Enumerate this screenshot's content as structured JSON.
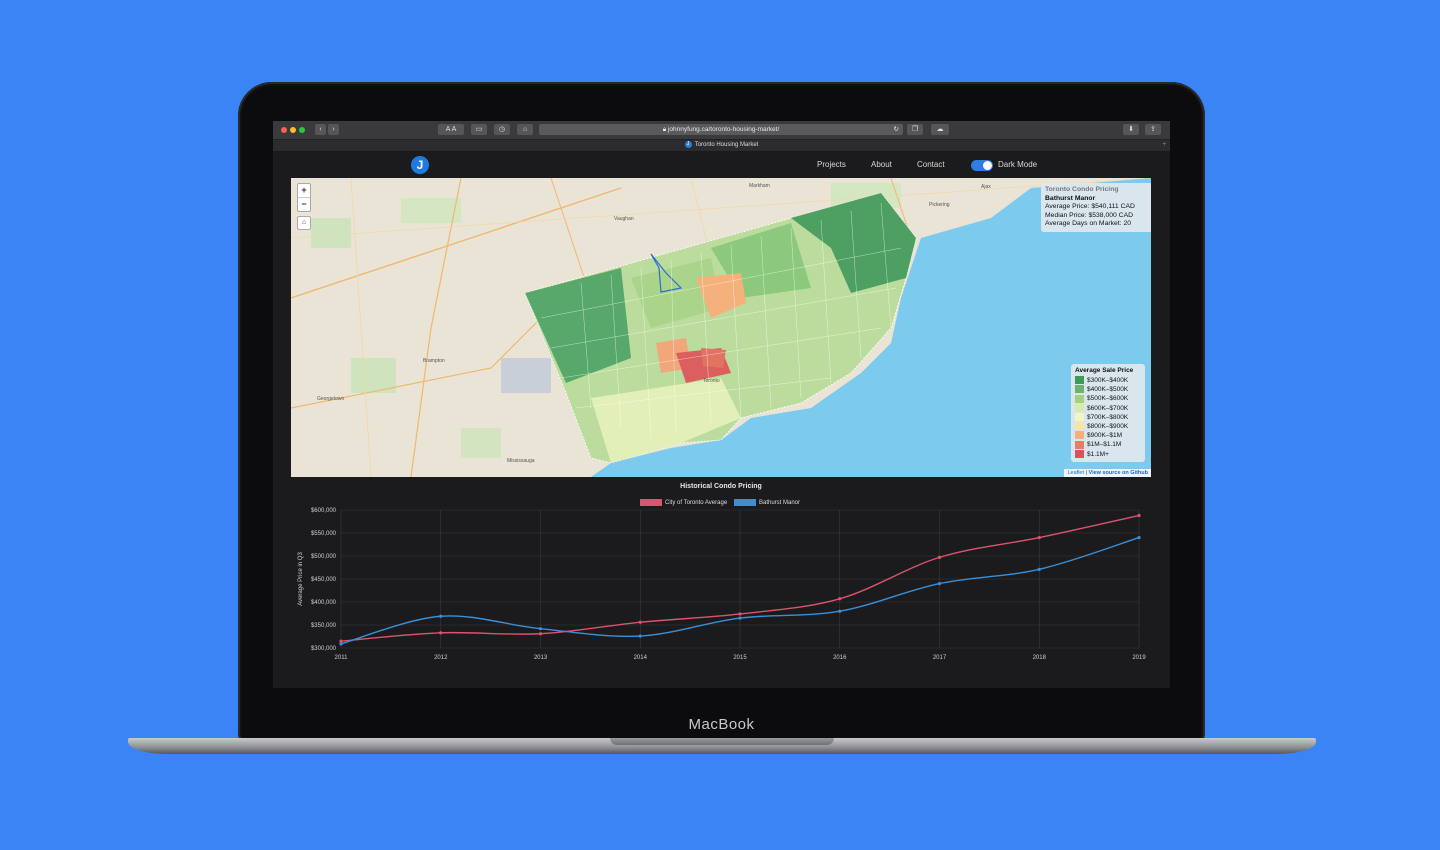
{
  "device": {
    "brand": "MacBook"
  },
  "browser": {
    "url": "johnnyfung.ca/toronto-housing-market/",
    "tab_title": "Toronto Housing Market",
    "tab_icon_letter": "J",
    "reader_font_small": "A",
    "reader_font_large": "A"
  },
  "site_nav": {
    "logo_letter": "J",
    "links": [
      "Projects",
      "About",
      "Contact"
    ],
    "dark_mode_label": "Dark Mode",
    "dark_mode_on": true
  },
  "map": {
    "zoom_in": "+",
    "zoom_out": "−",
    "place_labels": [
      "Vaughan",
      "Markham",
      "Brampton",
      "Mississauga",
      "Ajax",
      "Pickering",
      "Georgetown",
      "Toronto"
    ],
    "info": {
      "title": "Toronto Condo Pricing",
      "neighbourhood": "Bathurst Manor",
      "average_price": "Average Price: $540,111 CAD",
      "median_price": "Median Price: $538,000 CAD",
      "days_on_market": "Average Days on Market: 20"
    },
    "legend": {
      "title": "Average Sale Price",
      "items": [
        {
          "label": "$300K–$400K",
          "color": "#3f9a5a"
        },
        {
          "label": "$400K–$500K",
          "color": "#6db46b"
        },
        {
          "label": "$500K–$600K",
          "color": "#a5d07e"
        },
        {
          "label": "$600K–$700K",
          "color": "#d6ebad"
        },
        {
          "label": "$700K–$800K",
          "color": "#f3f5c4"
        },
        {
          "label": "$800K–$900K",
          "color": "#fbe3a4"
        },
        {
          "label": "$900K–$1M",
          "color": "#f5b07a"
        },
        {
          "label": "$1M–$1.1M",
          "color": "#e87c66"
        },
        {
          "label": "$1.1M+",
          "color": "#d6545a"
        }
      ]
    },
    "attribution_leaflet": "Leaflet",
    "attribution_sep": "|",
    "attribution_source": "View source on Github"
  },
  "chart_data": {
    "type": "line",
    "title": "Historical Condo Pricing",
    "ylabel": "Average Price in Q3",
    "xlabel": "",
    "x": [
      "2011",
      "2012",
      "2013",
      "2014",
      "2015",
      "2016",
      "2017",
      "2018",
      "2019"
    ],
    "ylim": [
      300000,
      600000
    ],
    "yticks": [
      "$300,000",
      "$350,000",
      "$400,000",
      "$450,000",
      "$500,000",
      "$550,000",
      "$600,000"
    ],
    "series": [
      {
        "name": "City of Toronto Average",
        "color": "#d9546f",
        "values": [
          315000,
          333000,
          331000,
          356000,
          374000,
          407000,
          497000,
          540000,
          588000
        ]
      },
      {
        "name": "Bathurst Manor",
        "color": "#3a8fd6",
        "values": [
          309000,
          369000,
          342000,
          326000,
          365000,
          380000,
          440000,
          471000,
          540000
        ]
      }
    ],
    "grid": true,
    "legend": "top"
  }
}
